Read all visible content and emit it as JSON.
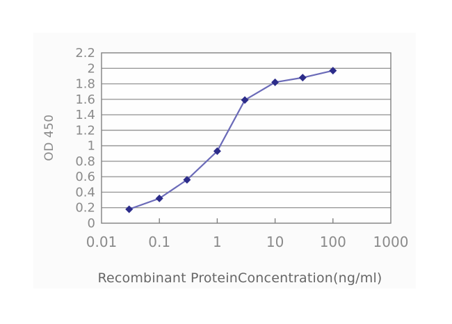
{
  "chart_data": {
    "type": "line",
    "x": [
      0.03,
      0.1,
      0.3,
      1,
      3,
      10,
      30,
      100
    ],
    "values": [
      0.18,
      0.32,
      0.56,
      0.93,
      1.59,
      1.82,
      1.88,
      1.97
    ],
    "x_scale": "log",
    "xlim": [
      0.01,
      1000
    ],
    "ylim": [
      0,
      2.2
    ],
    "x_ticks": [
      0.01,
      0.1,
      1,
      10,
      100,
      1000
    ],
    "x_tick_labels": [
      "0.01",
      "0.1",
      "1",
      "10",
      "100",
      "1000"
    ],
    "y_ticks": [
      0,
      0.2,
      0.4,
      0.6,
      0.8,
      1,
      1.2,
      1.4,
      1.6,
      1.8,
      2,
      2.2
    ],
    "y_tick_labels": [
      "0",
      "0.2",
      "0.4",
      "0.6",
      "0.8",
      "1",
      "1.2",
      "1.4",
      "1.6",
      "1.8",
      "2",
      "2.2"
    ],
    "xlabel": "Recombinant ProteinConcentration(ng/ml)",
    "ylabel": "OD 450",
    "title": "",
    "grid": "horizontal",
    "legend": "none",
    "marker": "diamond",
    "colors": {
      "line": "#6a6ab8",
      "marker": "#2c2c8a",
      "grid": "#999999",
      "axis": "#808080",
      "tick_text": "#8a8a8a",
      "label_text": "#666666",
      "figure_bg": "#fbfbfb",
      "plot_bg": "#fefefe",
      "page_bg": "#ffffff"
    }
  }
}
